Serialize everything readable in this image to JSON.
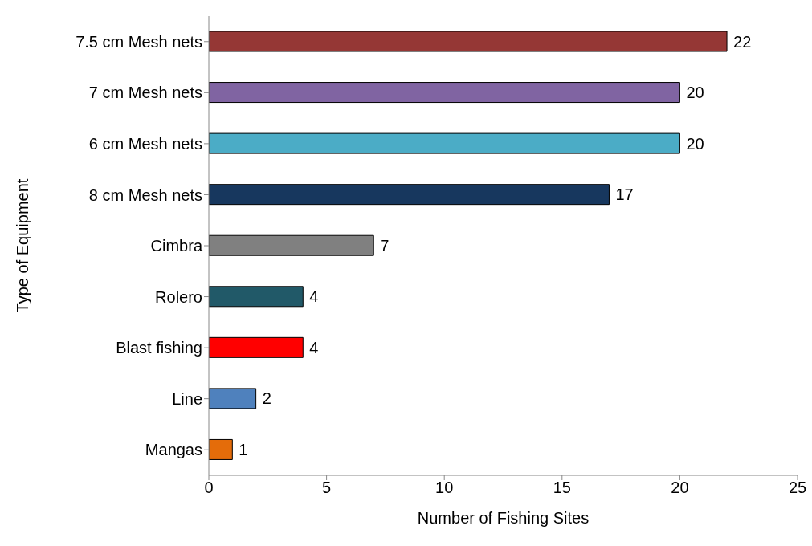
{
  "chart_data": {
    "type": "bar",
    "orientation": "horizontal",
    "xlabel": "Number of Fishing Sites",
    "ylabel": "Type of Equipment",
    "categories": [
      "7.5 cm Mesh nets",
      "7 cm Mesh nets",
      "6 cm Mesh nets",
      "8 cm Mesh nets",
      "Cimbra",
      "Rolero",
      "Blast fishing",
      "Line",
      "Mangas"
    ],
    "values": [
      22,
      20,
      20,
      17,
      7,
      4,
      4,
      2,
      1
    ],
    "colors": [
      "#953735",
      "#8064a2",
      "#4bacc6",
      "#17375e",
      "#808080",
      "#215968",
      "#ff0000",
      "#4f81bd",
      "#e46c0a"
    ],
    "xlim": [
      0,
      25
    ],
    "xticks": [
      0,
      5,
      10,
      15,
      20,
      25
    ],
    "grid": false,
    "legend": false,
    "data_labels": true
  }
}
